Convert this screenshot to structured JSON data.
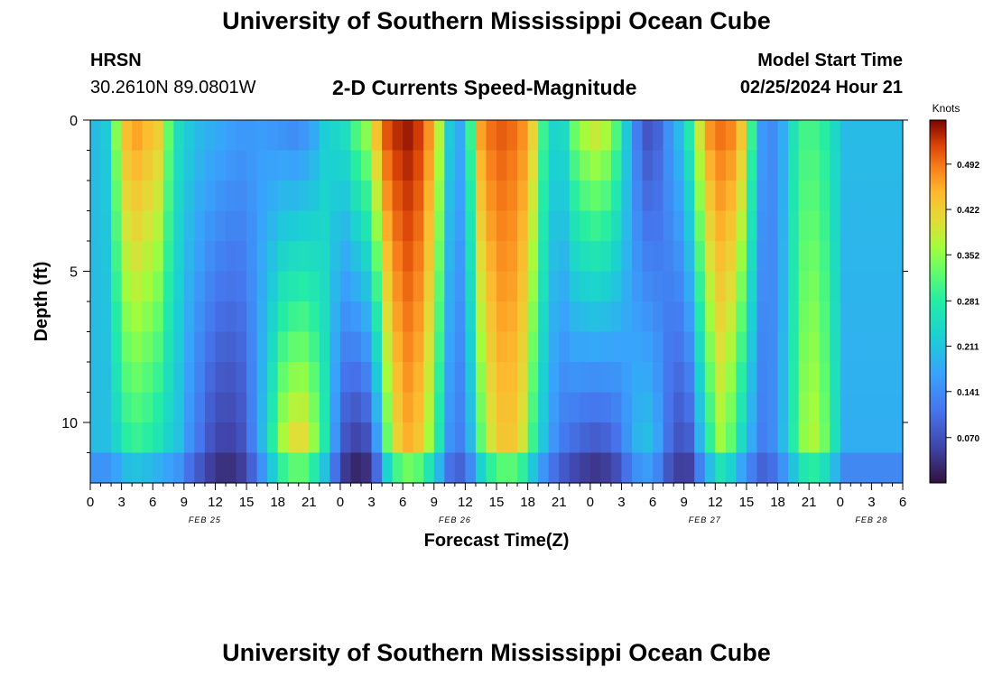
{
  "header": {
    "title": "University of Southern Mississippi Ocean Cube",
    "station": "HRSN",
    "coords": "30.2610N  89.0801W",
    "subtitle": "2-D Currents Speed-Magnitude",
    "model_start_label": "Model Start Time",
    "model_start_value": "02/25/2024 Hour 21"
  },
  "footer": {
    "title": "University of Southern Mississippi Ocean Cube"
  },
  "colorbar": {
    "unit": "Knots",
    "ticks": [
      "0.492",
      "0.422",
      "0.352",
      "0.281",
      "0.211",
      "0.141",
      "0.070"
    ],
    "tick_values": [
      0.492,
      0.422,
      0.352,
      0.281,
      0.211,
      0.141,
      0.07
    ],
    "min": 0.0,
    "max": 0.56
  },
  "chart_data": {
    "type": "heatmap",
    "title": "2-D Currents Speed-Magnitude",
    "xlabel": "Forecast Time(Z)",
    "ylabel": "Depth (ft)",
    "x_hours_start": 0,
    "x_hours_end": 78,
    "depth_range": [
      0,
      12
    ],
    "x_tick_labels": [
      "0",
      "3",
      "6",
      "9",
      "12",
      "15",
      "18",
      "21",
      "0",
      "3",
      "6",
      "9",
      "12",
      "15",
      "18",
      "21",
      "0",
      "3",
      "6",
      "9",
      "12",
      "15",
      "18",
      "21",
      "0",
      "3",
      "6"
    ],
    "y_tick_labels": [
      "0",
      "5",
      "10"
    ],
    "y_tick_values": [
      0,
      5,
      10
    ],
    "date_labels": [
      {
        "label": "FEB 25",
        "hour": 11
      },
      {
        "label": "FEB 26",
        "hour": 35
      },
      {
        "label": "FEB 27",
        "hour": 59
      },
      {
        "label": "FEB 28",
        "hour": 75
      }
    ],
    "column_profiles": [
      {
        "hour": 0,
        "top": 0.2,
        "bottom": 0.2
      },
      {
        "hour": 1,
        "top": 0.22,
        "bottom": 0.2
      },
      {
        "hour": 2,
        "top": 0.35,
        "bottom": 0.22
      },
      {
        "hour": 3,
        "top": 0.45,
        "bottom": 0.26
      },
      {
        "hour": 4,
        "top": 0.47,
        "bottom": 0.27
      },
      {
        "hour": 5,
        "top": 0.45,
        "bottom": 0.26
      },
      {
        "hour": 6,
        "top": 0.43,
        "bottom": 0.24
      },
      {
        "hour": 7,
        "top": 0.33,
        "bottom": 0.22
      },
      {
        "hour": 8,
        "top": 0.25,
        "bottom": 0.2
      },
      {
        "hour": 9,
        "top": 0.22,
        "bottom": 0.14
      },
      {
        "hour": 10,
        "top": 0.2,
        "bottom": 0.1
      },
      {
        "hour": 11,
        "top": 0.19,
        "bottom": 0.06
      },
      {
        "hour": 12,
        "top": 0.18,
        "bottom": 0.04
      },
      {
        "hour": 13,
        "top": 0.17,
        "bottom": 0.04
      },
      {
        "hour": 14,
        "top": 0.16,
        "bottom": 0.06
      },
      {
        "hour": 15,
        "top": 0.16,
        "bottom": 0.12
      },
      {
        "hour": 16,
        "top": 0.16,
        "bottom": 0.2
      },
      {
        "hour": 17,
        "top": 0.15,
        "bottom": 0.3
      },
      {
        "hour": 18,
        "top": 0.14,
        "bottom": 0.4
      },
      {
        "hour": 19,
        "top": 0.13,
        "bottom": 0.44
      },
      {
        "hour": 20,
        "top": 0.14,
        "bottom": 0.44
      },
      {
        "hour": 21,
        "top": 0.17,
        "bottom": 0.38
      },
      {
        "hour": 22,
        "top": 0.22,
        "bottom": 0.28
      },
      {
        "hour": 23,
        "top": 0.24,
        "bottom": 0.14
      },
      {
        "hour": 24,
        "top": 0.26,
        "bottom": 0.05
      },
      {
        "hour": 25,
        "top": 0.32,
        "bottom": 0.02
      },
      {
        "hour": 26,
        "top": 0.36,
        "bottom": 0.03
      },
      {
        "hour": 27,
        "top": 0.45,
        "bottom": 0.12
      },
      {
        "hour": 28,
        "top": 0.52,
        "bottom": 0.3
      },
      {
        "hour": 29,
        "top": 0.54,
        "bottom": 0.4
      },
      {
        "hour": 30,
        "top": 0.55,
        "bottom": 0.44
      },
      {
        "hour": 31,
        "top": 0.53,
        "bottom": 0.42
      },
      {
        "hour": 32,
        "top": 0.48,
        "bottom": 0.35
      },
      {
        "hour": 33,
        "top": 0.38,
        "bottom": 0.25
      },
      {
        "hour": 34,
        "top": 0.22,
        "bottom": 0.14
      },
      {
        "hour": 35,
        "top": 0.18,
        "bottom": 0.12
      },
      {
        "hour": 36,
        "top": 0.3,
        "bottom": 0.18
      },
      {
        "hour": 37,
        "top": 0.47,
        "bottom": 0.3
      },
      {
        "hour": 38,
        "top": 0.5,
        "bottom": 0.38
      },
      {
        "hour": 39,
        "top": 0.51,
        "bottom": 0.42
      },
      {
        "hour": 40,
        "top": 0.5,
        "bottom": 0.42
      },
      {
        "hour": 41,
        "top": 0.48,
        "bottom": 0.38
      },
      {
        "hour": 42,
        "top": 0.42,
        "bottom": 0.28
      },
      {
        "hour": 43,
        "top": 0.3,
        "bottom": 0.2
      },
      {
        "hour": 44,
        "top": 0.24,
        "bottom": 0.14
      },
      {
        "hour": 45,
        "top": 0.25,
        "bottom": 0.1
      },
      {
        "hour": 46,
        "top": 0.34,
        "bottom": 0.07
      },
      {
        "hour": 47,
        "top": 0.38,
        "bottom": 0.05
      },
      {
        "hour": 48,
        "top": 0.4,
        "bottom": 0.04
      },
      {
        "hour": 49,
        "top": 0.38,
        "bottom": 0.05
      },
      {
        "hour": 50,
        "top": 0.32,
        "bottom": 0.08
      },
      {
        "hour": 51,
        "top": 0.22,
        "bottom": 0.14
      },
      {
        "hour": 52,
        "top": 0.12,
        "bottom": 0.2
      },
      {
        "hour": 53,
        "top": 0.07,
        "bottom": 0.22
      },
      {
        "hour": 54,
        "top": 0.09,
        "bottom": 0.18
      },
      {
        "hour": 55,
        "top": 0.15,
        "bottom": 0.1
      },
      {
        "hour": 56,
        "top": 0.2,
        "bottom": 0.06
      },
      {
        "hour": 57,
        "top": 0.28,
        "bottom": 0.06
      },
      {
        "hour": 58,
        "top": 0.4,
        "bottom": 0.16
      },
      {
        "hour": 59,
        "top": 0.48,
        "bottom": 0.26
      },
      {
        "hour": 60,
        "top": 0.5,
        "bottom": 0.34
      },
      {
        "hour": 61,
        "top": 0.49,
        "bottom": 0.3
      },
      {
        "hour": 62,
        "top": 0.44,
        "bottom": 0.22
      },
      {
        "hour": 63,
        "top": 0.3,
        "bottom": 0.16
      },
      {
        "hour": 64,
        "top": 0.16,
        "bottom": 0.12
      },
      {
        "hour": 65,
        "top": 0.14,
        "bottom": 0.14
      },
      {
        "hour": 66,
        "top": 0.18,
        "bottom": 0.2
      },
      {
        "hour": 67,
        "top": 0.26,
        "bottom": 0.28
      },
      {
        "hour": 68,
        "top": 0.3,
        "bottom": 0.36
      },
      {
        "hour": 69,
        "top": 0.3,
        "bottom": 0.38
      },
      {
        "hour": 70,
        "top": 0.28,
        "bottom": 0.34
      },
      {
        "hour": 71,
        "top": 0.24,
        "bottom": 0.26
      },
      {
        "hour": 72,
        "top": 0.2,
        "bottom": 0.18
      }
    ]
  }
}
